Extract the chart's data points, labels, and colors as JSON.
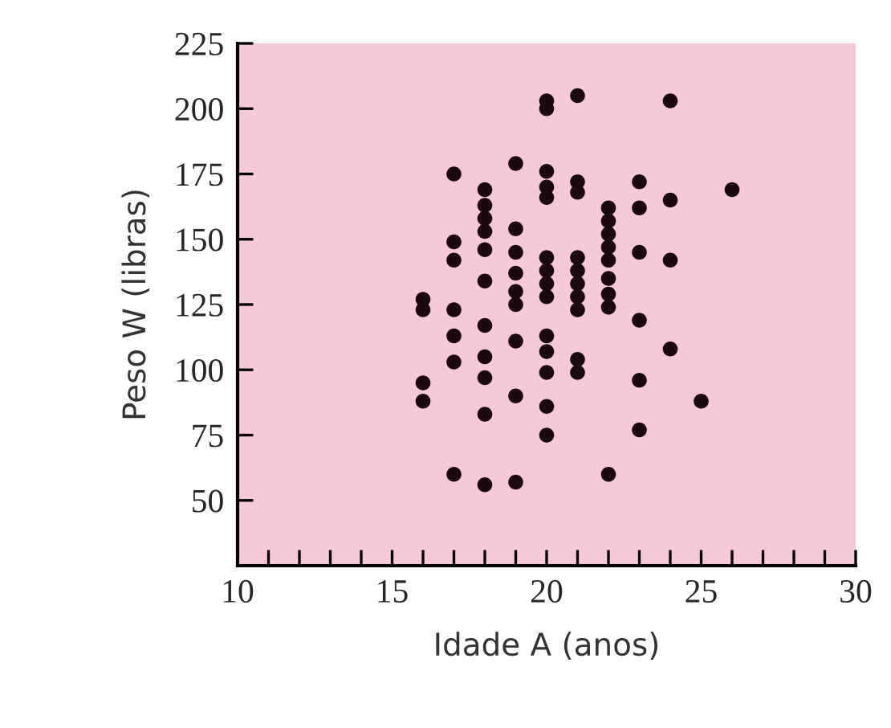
{
  "chart_data": {
    "type": "scatter",
    "xlabel": "Idade A (anos)",
    "ylabel": "Peso W (libras)",
    "xlim": [
      10,
      30
    ],
    "ylim": [
      25,
      225
    ],
    "xticks": [
      10,
      {
        "value": 11,
        "label": null
      },
      {
        "value": 12,
        "label": null
      },
      {
        "value": 13,
        "label": null
      },
      {
        "value": 14,
        "label": null
      },
      15,
      {
        "value": 16,
        "label": null
      },
      {
        "value": 17,
        "label": null
      },
      {
        "value": 18,
        "label": null
      },
      {
        "value": 19,
        "label": null
      },
      20,
      {
        "value": 21,
        "label": null
      },
      {
        "value": 22,
        "label": null
      },
      {
        "value": 23,
        "label": null
      },
      {
        "value": 24,
        "label": null
      },
      25,
      {
        "value": 26,
        "label": null
      },
      {
        "value": 27,
        "label": null
      },
      {
        "value": 28,
        "label": null
      },
      {
        "value": 29,
        "label": null
      },
      30
    ],
    "yticks": [
      50,
      75,
      100,
      125,
      150,
      175,
      200,
      225
    ],
    "grid": false,
    "marker": "circle",
    "series": [
      {
        "color": "#1a0a10",
        "x": [
          16,
          16,
          16,
          16,
          17,
          17,
          17,
          17,
          17,
          17,
          17,
          18,
          18,
          18,
          18,
          18,
          18,
          18,
          18,
          18,
          18,
          18,
          19,
          19,
          19,
          19,
          19,
          19,
          19,
          19,
          19,
          20,
          20,
          20,
          20,
          20,
          20,
          20,
          20,
          20,
          20,
          20,
          20,
          20,
          20,
          21,
          21,
          21,
          21,
          21,
          21,
          21,
          21,
          21,
          21,
          22,
          22,
          22,
          22,
          22,
          22,
          22,
          22,
          22,
          23,
          23,
          23,
          23,
          23,
          23,
          24,
          24,
          24,
          24,
          25,
          26
        ],
        "values": [
          127,
          123,
          95,
          88,
          175,
          149,
          142,
          123,
          113,
          103,
          60,
          169,
          163,
          158,
          153,
          146,
          134,
          117,
          105,
          97,
          83,
          56,
          179,
          154,
          145,
          137,
          130,
          125,
          111,
          90,
          57,
          203,
          200,
          176,
          170,
          166,
          143,
          138,
          133,
          128,
          113,
          107,
          99,
          86,
          75,
          205,
          172,
          168,
          143,
          138,
          133,
          128,
          123,
          104,
          99,
          162,
          157,
          152,
          147,
          142,
          135,
          129,
          124,
          60,
          172,
          162,
          145,
          119,
          96,
          77,
          203,
          165,
          142,
          108,
          88,
          169
        ]
      }
    ]
  }
}
